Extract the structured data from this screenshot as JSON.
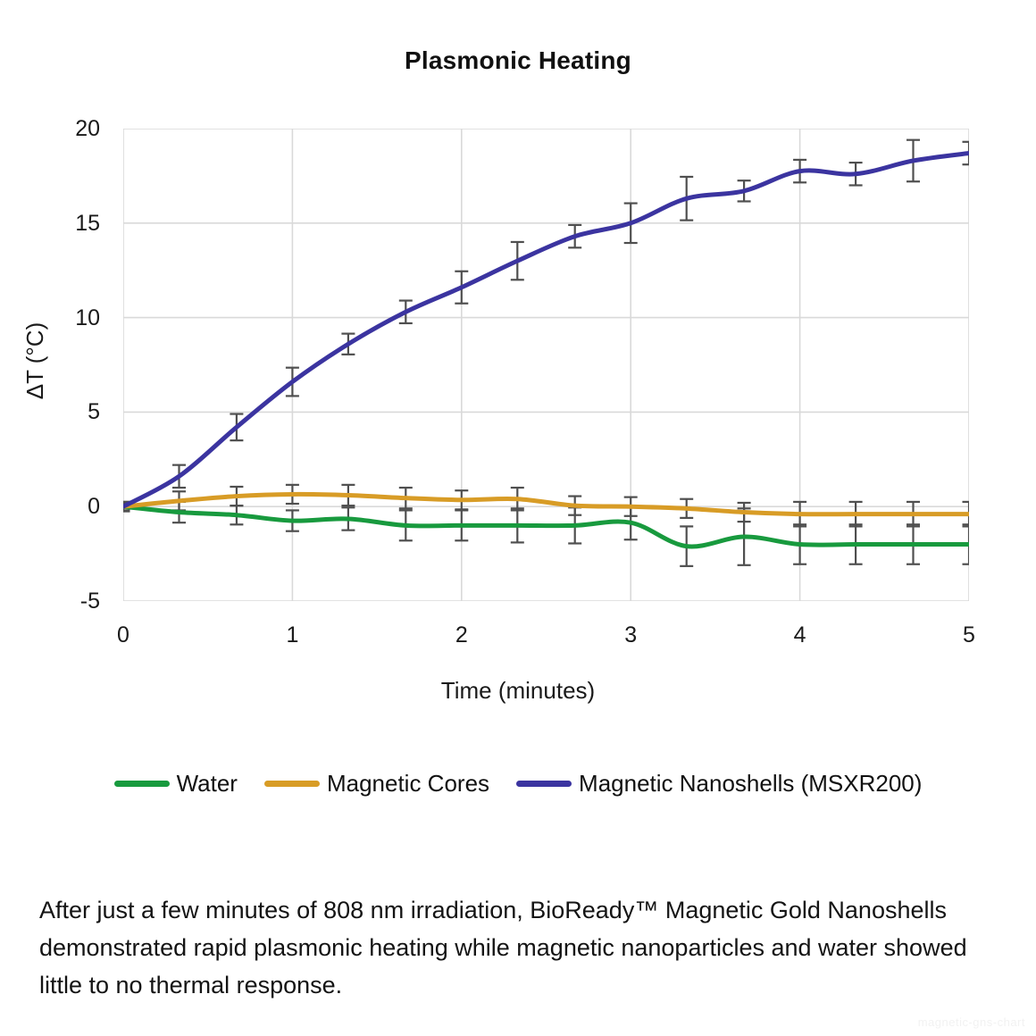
{
  "page": {
    "background": "#ffffff"
  },
  "chart_data": {
    "type": "line",
    "title": "Plasmonic Heating",
    "xlabel": "Time (minutes)",
    "ylabel": "ΔT (°C)",
    "xlim": [
      0,
      5
    ],
    "ylim": [
      -5,
      20
    ],
    "x_ticks": [
      0,
      1,
      2,
      3,
      4,
      5
    ],
    "y_ticks": [
      20,
      15,
      10,
      5,
      0,
      -5
    ],
    "grid": true,
    "legend_position": "bottom",
    "gridline_color": "#d9d9d9",
    "error_bar_color": "#4f4f4f",
    "x": [
      0,
      0.33,
      0.67,
      1,
      1.33,
      1.67,
      2,
      2.33,
      2.67,
      3,
      3.33,
      3.67,
      4,
      4.33,
      4.67,
      5
    ],
    "series": [
      {
        "name": "Water",
        "color": "#189a3e",
        "values": [
          0,
          -0.3,
          -0.45,
          -0.75,
          -0.65,
          -1.0,
          -1.0,
          -1.0,
          -1.0,
          -0.85,
          -2.1,
          -1.6,
          -2.0,
          -2.0,
          -2.0,
          -2.0
        ],
        "errors": [
          0.25,
          0.55,
          0.5,
          0.55,
          0.6,
          0.8,
          0.8,
          0.9,
          0.95,
          0.9,
          1.05,
          1.5,
          1.05,
          1.05,
          1.05,
          1.05
        ]
      },
      {
        "name": "Magnetic Cores",
        "color": "#d89c26",
        "values": [
          0,
          0.3,
          0.55,
          0.65,
          0.6,
          0.45,
          0.35,
          0.4,
          0.05,
          0,
          -0.1,
          -0.3,
          -0.4,
          -0.4,
          -0.4,
          -0.4
        ],
        "errors": [
          0.25,
          0.5,
          0.5,
          0.5,
          0.55,
          0.55,
          0.5,
          0.6,
          0.5,
          0.5,
          0.5,
          0.5,
          0.65,
          0.65,
          0.65,
          0.65
        ]
      },
      {
        "name": "Magnetic Nanoshells (MSXR200)",
        "color": "#3b34a0",
        "values": [
          0,
          1.6,
          4.2,
          6.6,
          8.6,
          10.3,
          11.6,
          13.0,
          14.3,
          15.0,
          16.3,
          16.7,
          17.75,
          17.6,
          18.3,
          18.7
        ],
        "errors": [
          0.2,
          0.6,
          0.7,
          0.75,
          0.55,
          0.6,
          0.85,
          1.0,
          0.6,
          1.05,
          1.15,
          0.55,
          0.6,
          0.6,
          1.1,
          0.6
        ]
      }
    ]
  },
  "caption": {
    "text": "After just a few minutes of 808 nm irradiation, BioReady™ Magnetic Gold Nanoshells demonstrated rapid plasmonic heating while magnetic nanoparticles and water showed little to no thermal response."
  },
  "watermark": {
    "text": "magnetic-gns-chart"
  }
}
